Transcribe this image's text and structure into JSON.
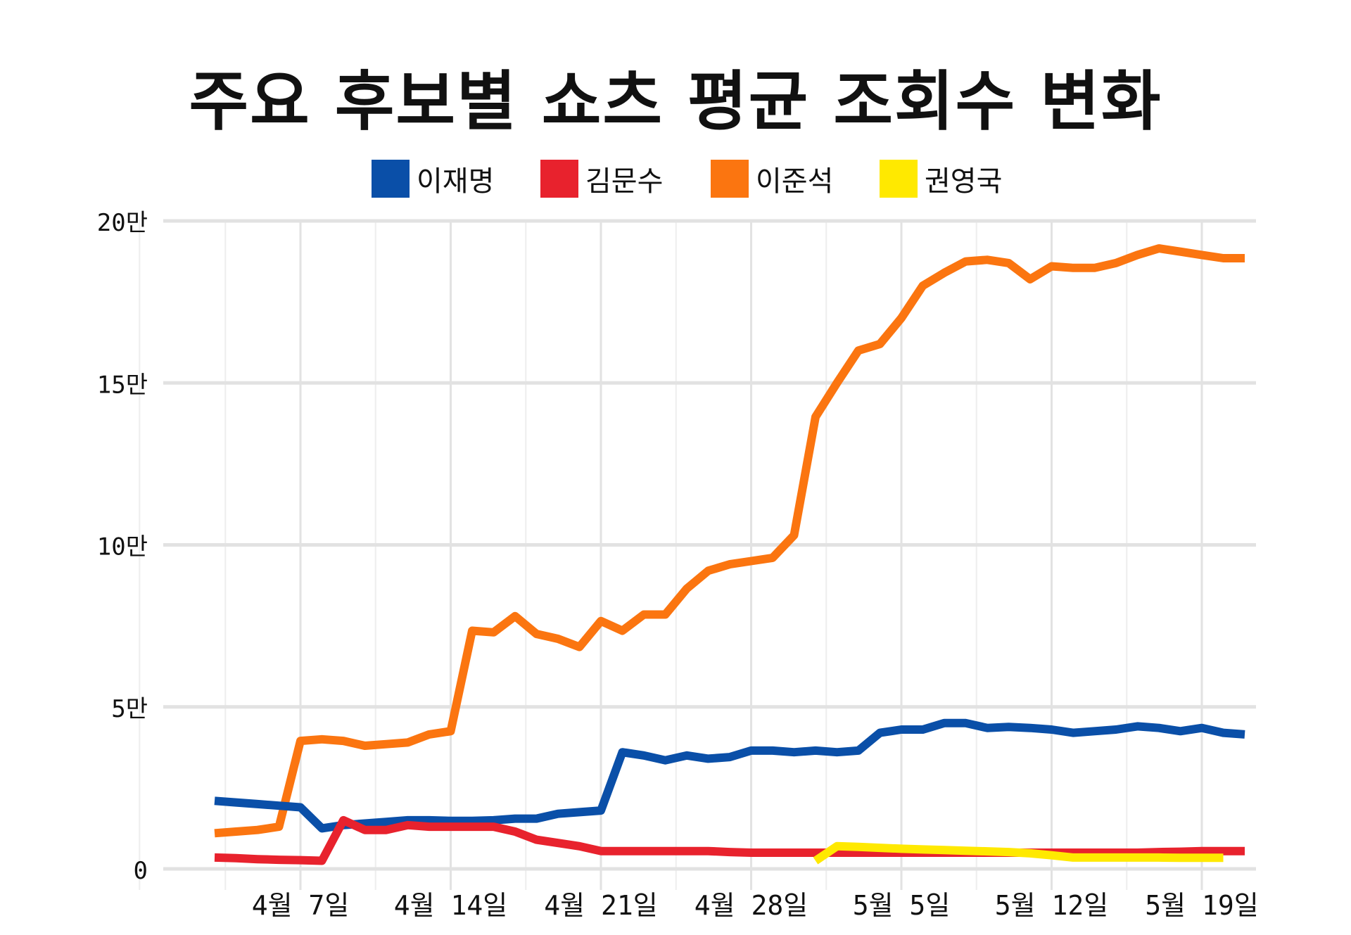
{
  "title": "주요 후보별 쇼츠 평균 조회수 변화",
  "chart_data": {
    "type": "line",
    "title": "주요 후보별 쇼츠 평균 조회수 변화",
    "xlabel": "",
    "ylabel": "",
    "x_ticks": [
      "4월 7일",
      "4월 14일",
      "4월 21일",
      "4월 28일",
      "5월 5일",
      "5월 12일",
      "5월 19일"
    ],
    "y_ticks": [
      "0",
      "5만",
      "10만",
      "15만",
      "20만"
    ],
    "ylim": [
      0,
      200000
    ],
    "grid": true,
    "legend_position": "top",
    "x_start": "2025-04-03",
    "series": [
      {
        "name": "이재명",
        "color": "#0a4fa8",
        "x": [
          "2025-04-03",
          "2025-04-04",
          "2025-04-05",
          "2025-04-06",
          "2025-04-07",
          "2025-04-08",
          "2025-04-09",
          "2025-04-10",
          "2025-04-11",
          "2025-04-12",
          "2025-04-13",
          "2025-04-14",
          "2025-04-15",
          "2025-04-16",
          "2025-04-17",
          "2025-04-18",
          "2025-04-19",
          "2025-04-20",
          "2025-04-21",
          "2025-04-22",
          "2025-04-23",
          "2025-04-24",
          "2025-04-25",
          "2025-04-26",
          "2025-04-27",
          "2025-04-28",
          "2025-04-29",
          "2025-04-30",
          "2025-05-01",
          "2025-05-02",
          "2025-05-03",
          "2025-05-04",
          "2025-05-05",
          "2025-05-06",
          "2025-05-07",
          "2025-05-08",
          "2025-05-09",
          "2025-05-10",
          "2025-05-11",
          "2025-05-12",
          "2025-05-13",
          "2025-05-14",
          "2025-05-15",
          "2025-05-16",
          "2025-05-17",
          "2025-05-18",
          "2025-05-19",
          "2025-05-20",
          "2025-05-21"
        ],
        "y": [
          21000,
          20500,
          20000,
          19500,
          19000,
          12500,
          13500,
          14000,
          14500,
          15000,
          15000,
          14800,
          14800,
          15000,
          15500,
          15500,
          17000,
          17500,
          18000,
          36000,
          35000,
          33500,
          35000,
          34000,
          34500,
          36500,
          36500,
          36000,
          36500,
          36000,
          36500,
          42000,
          43000,
          43000,
          45000,
          45000,
          43500,
          43800,
          43500,
          43000,
          42000,
          42500,
          43000,
          44000,
          43500,
          42500,
          43500,
          42000,
          41500
        ]
      },
      {
        "name": "김문수",
        "color": "#e8222d",
        "x": [
          "2025-04-03",
          "2025-04-04",
          "2025-04-05",
          "2025-04-06",
          "2025-04-07",
          "2025-04-08",
          "2025-04-09",
          "2025-04-10",
          "2025-04-11",
          "2025-04-12",
          "2025-04-13",
          "2025-04-14",
          "2025-04-15",
          "2025-04-16",
          "2025-04-17",
          "2025-04-18",
          "2025-04-19",
          "2025-04-20",
          "2025-04-21",
          "2025-04-22",
          "2025-04-23",
          "2025-04-24",
          "2025-04-25",
          "2025-04-26",
          "2025-04-27",
          "2025-04-28",
          "2025-04-29",
          "2025-04-30",
          "2025-05-01",
          "2025-05-02",
          "2025-05-03",
          "2025-05-04",
          "2025-05-05",
          "2025-05-06",
          "2025-05-07",
          "2025-05-08",
          "2025-05-09",
          "2025-05-10",
          "2025-05-11",
          "2025-05-12",
          "2025-05-13",
          "2025-05-14",
          "2025-05-15",
          "2025-05-16",
          "2025-05-17",
          "2025-05-18",
          "2025-05-19",
          "2025-05-20",
          "2025-05-21"
        ],
        "y": [
          3500,
          3300,
          3000,
          2800,
          2700,
          2500,
          15000,
          12000,
          12000,
          13500,
          13000,
          13000,
          13000,
          13000,
          11500,
          9000,
          8000,
          7000,
          5500,
          5500,
          5500,
          5500,
          5500,
          5500,
          5200,
          5000,
          5000,
          5000,
          5000,
          5000,
          5000,
          5000,
          5000,
          5000,
          5000,
          5000,
          5000,
          5000,
          5000,
          5000,
          5000,
          5000,
          5000,
          5000,
          5200,
          5300,
          5500,
          5500,
          5500
        ]
      },
      {
        "name": "이준석",
        "color": "#fb7510",
        "x": [
          "2025-04-03",
          "2025-04-04",
          "2025-04-05",
          "2025-04-06",
          "2025-04-07",
          "2025-04-08",
          "2025-04-09",
          "2025-04-10",
          "2025-04-11",
          "2025-04-12",
          "2025-04-13",
          "2025-04-14",
          "2025-04-15",
          "2025-04-16",
          "2025-04-17",
          "2025-04-18",
          "2025-04-19",
          "2025-04-20",
          "2025-04-21",
          "2025-04-22",
          "2025-04-23",
          "2025-04-24",
          "2025-04-25",
          "2025-04-26",
          "2025-04-27",
          "2025-04-28",
          "2025-04-29",
          "2025-04-30",
          "2025-05-01",
          "2025-05-02",
          "2025-05-03",
          "2025-05-04",
          "2025-05-05",
          "2025-05-06",
          "2025-05-07",
          "2025-05-08",
          "2025-05-09",
          "2025-05-10",
          "2025-05-11",
          "2025-05-12",
          "2025-05-13",
          "2025-05-14",
          "2025-05-15",
          "2025-05-16",
          "2025-05-17",
          "2025-05-18",
          "2025-05-19",
          "2025-05-20",
          "2025-05-21"
        ],
        "y": [
          11000,
          11500,
          12000,
          13000,
          39500,
          40000,
          39500,
          38000,
          38500,
          39000,
          41500,
          42500,
          73500,
          73000,
          78000,
          72500,
          71000,
          68500,
          76500,
          73500,
          78500,
          78500,
          86500,
          92000,
          94000,
          95000,
          96000,
          103000,
          139500,
          150000,
          160000,
          162000,
          170000,
          180000,
          184000,
          187500,
          188000,
          187000,
          182000,
          186000,
          185500,
          185500,
          187000,
          189500,
          191500,
          190500,
          189500,
          188500,
          188500
        ]
      },
      {
        "name": "권영국",
        "color": "#ffe900",
        "x": [
          "2025-05-01",
          "2025-05-02",
          "2025-05-03",
          "2025-05-04",
          "2025-05-05",
          "2025-05-06",
          "2025-05-07",
          "2025-05-08",
          "2025-05-09",
          "2025-05-10",
          "2025-05-11",
          "2025-05-12",
          "2025-05-13",
          "2025-05-14",
          "2025-05-15",
          "2025-05-16",
          "2025-05-17",
          "2025-05-18",
          "2025-05-19",
          "2025-05-20"
        ],
        "y": [
          2500,
          7000,
          6800,
          6500,
          6200,
          6000,
          5800,
          5600,
          5400,
          5200,
          4800,
          4200,
          3500,
          3500,
          3500,
          3500,
          3500,
          3400,
          3400,
          3400
        ]
      }
    ]
  }
}
